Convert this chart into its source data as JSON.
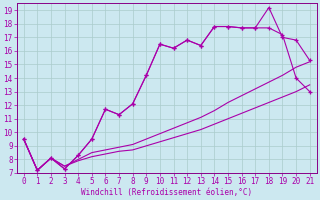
{
  "xlabel": "Windchill (Refroidissement éolien,°C)",
  "bg_color": "#cce8f0",
  "line_color": "#aa00aa",
  "grid_color": "#aacccc",
  "spine_color": "#880088",
  "xlim": [
    -0.5,
    21.5
  ],
  "ylim": [
    7,
    19.5
  ],
  "xticks": [
    0,
    1,
    2,
    3,
    4,
    5,
    6,
    7,
    8,
    9,
    10,
    11,
    12,
    13,
    14,
    15,
    16,
    17,
    18,
    19,
    20,
    21
  ],
  "yticks": [
    7,
    8,
    9,
    10,
    11,
    12,
    13,
    14,
    15,
    16,
    17,
    18,
    19
  ],
  "line1_x": [
    0,
    1,
    2,
    3,
    4,
    5,
    6,
    7,
    8,
    9,
    10,
    11,
    12,
    13,
    14,
    15,
    16,
    17,
    18,
    19,
    20,
    21
  ],
  "line1_y": [
    9.5,
    7.2,
    8.1,
    7.3,
    8.3,
    9.5,
    11.7,
    11.3,
    12.1,
    14.2,
    16.5,
    16.2,
    16.8,
    16.4,
    17.8,
    17.8,
    17.7,
    17.7,
    19.2,
    17.0,
    16.8,
    15.3
  ],
  "line2_x": [
    0,
    1,
    2,
    3,
    4,
    5,
    6,
    7,
    8,
    9,
    10,
    11,
    12,
    13,
    14,
    15,
    16,
    17,
    18,
    19,
    20,
    21
  ],
  "line2_y": [
    9.5,
    7.2,
    8.1,
    7.3,
    8.3,
    9.5,
    11.7,
    11.3,
    12.1,
    14.2,
    16.5,
    16.2,
    16.8,
    16.4,
    17.8,
    17.8,
    17.7,
    17.7,
    17.7,
    17.2,
    14.0,
    13.0
  ],
  "line3_x": [
    0,
    1,
    2,
    3,
    4,
    5,
    6,
    7,
    8,
    9,
    10,
    11,
    12,
    13,
    14,
    15,
    16,
    17,
    18,
    19,
    20,
    21
  ],
  "line3_y": [
    9.5,
    7.2,
    8.1,
    7.5,
    8.0,
    8.5,
    8.7,
    8.9,
    9.1,
    9.5,
    9.9,
    10.3,
    10.7,
    11.1,
    11.6,
    12.2,
    12.7,
    13.2,
    13.7,
    14.2,
    14.8,
    15.2
  ],
  "line4_x": [
    0,
    1,
    2,
    3,
    4,
    5,
    6,
    7,
    8,
    9,
    10,
    11,
    12,
    13,
    14,
    15,
    16,
    17,
    18,
    19,
    20,
    21
  ],
  "line4_y": [
    9.5,
    7.2,
    8.1,
    7.5,
    7.9,
    8.2,
    8.4,
    8.6,
    8.7,
    9.0,
    9.3,
    9.6,
    9.9,
    10.2,
    10.6,
    11.0,
    11.4,
    11.8,
    12.2,
    12.6,
    13.0,
    13.5
  ]
}
